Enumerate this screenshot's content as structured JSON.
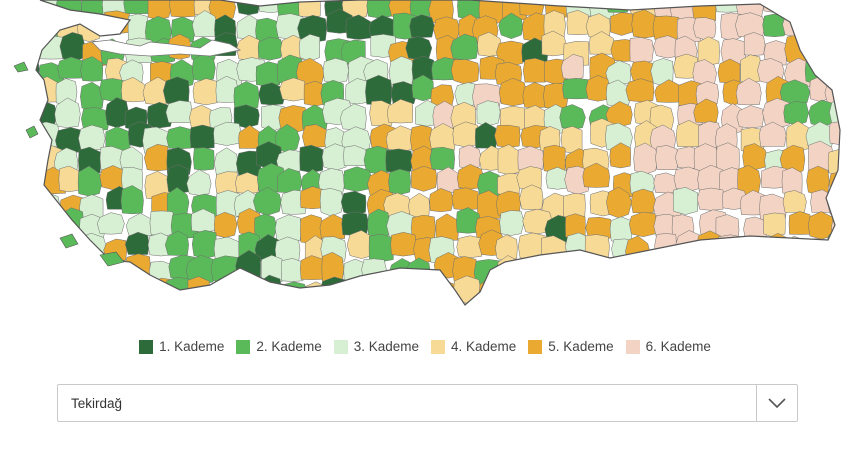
{
  "map": {
    "colors": {
      "kademe1": "#2e6b3a",
      "kademe2": "#5aba5a",
      "kademe3": "#d7efd3",
      "kademe4": "#f7da96",
      "kademe5": "#eaaa32",
      "kademe6": "#f3d4c4",
      "sea": "#ffffff",
      "border": "#6f6f6f"
    }
  },
  "legend": {
    "items": [
      {
        "label": "1. Kademe",
        "color": "#2e6b3a"
      },
      {
        "label": "2. Kademe",
        "color": "#5aba5a"
      },
      {
        "label": "3. Kademe",
        "color": "#d7efd3"
      },
      {
        "label": "4. Kademe",
        "color": "#f7da96"
      },
      {
        "label": "5. Kademe",
        "color": "#eaaa32"
      },
      {
        "label": "6. Kademe",
        "color": "#f3d4c4"
      }
    ]
  },
  "province_select": {
    "value": "Tekirdağ",
    "toggle_icon": "chevron-down-icon"
  }
}
